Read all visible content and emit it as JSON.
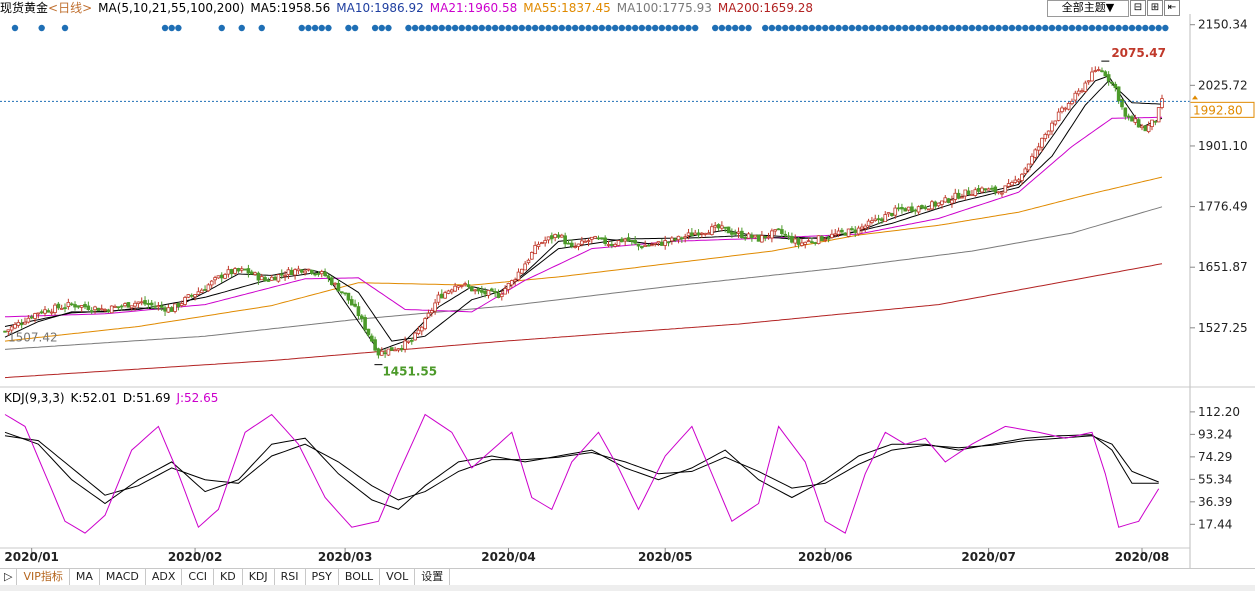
{
  "legend": {
    "title": "现货黄金",
    "period": "<日线>",
    "ma_set": "MA(5,10,21,55,100,200)",
    "ma5": "MA5:1958.56",
    "ma10": "MA10:1986.92",
    "ma21": "MA21:1960.58",
    "ma55": "MA55:1837.45",
    "ma100": "MA100:1775.93",
    "ma200": "MA200:1659.28"
  },
  "toolbar": {
    "theme_label": "全部主题▼",
    "minus": "⊟",
    "plus": "⊞",
    "back": "⇤"
  },
  "kdj_legend": {
    "name": "KDJ(9,3,3)",
    "k": "K:52.01",
    "d": "D:51.69",
    "j": "J:52.65"
  },
  "tabs": [
    "VIP指标",
    "MA",
    "MACD",
    "ADX",
    "CCI",
    "KD",
    "KDJ",
    "RSI",
    "PSY",
    "BOLL",
    "VOL",
    "设置"
  ],
  "tabs_first_symbol": "▷",
  "colors": {
    "up": "#c0392b",
    "down": "#4c9a2a",
    "ma5": "#000000",
    "ma10": "#000000",
    "ma21": "#cc00cc",
    "ma55": "#e08a00",
    "ma100": "#7a7a7a",
    "ma200": "#b22222",
    "dots": "#1f6fb5",
    "price_line": "#1f6fb5",
    "price_label": "#e08a00"
  },
  "chart_data": [
    {
      "type": "candlestick",
      "title": "现货黄金 <日线>",
      "y_ticks": [
        "2150.34",
        "2025.72",
        "1901.10",
        "1776.49",
        "1651.87",
        "1527.25"
      ],
      "ylim": [
        1420,
        2160
      ],
      "x_labels": [
        "2020/01",
        "2020/02",
        "2020/03",
        "2020/04",
        "2020/05",
        "2020/06",
        "2020/07",
        "2020/08"
      ],
      "current_price": "1992.80",
      "annotations": {
        "high": "2075.47",
        "low": "1451.55",
        "start": "1507.42"
      },
      "keypoints": {
        "close": [
          [
            0,
            1520
          ],
          [
            10,
            1560
          ],
          [
            20,
            1575
          ],
          [
            30,
            1565
          ],
          [
            40,
            1580
          ],
          [
            45,
            1572
          ],
          [
            50,
            1565
          ],
          [
            55,
            1590
          ],
          [
            60,
            1610
          ],
          [
            66,
            1640
          ],
          [
            72,
            1645
          ],
          [
            78,
            1625
          ],
          [
            84,
            1640
          ],
          [
            90,
            1650
          ],
          [
            96,
            1635
          ],
          [
            102,
            1595
          ],
          [
            106,
            1555
          ],
          [
            112,
            1475
          ],
          [
            118,
            1488
          ],
          [
            122,
            1500
          ],
          [
            126,
            1540
          ],
          [
            130,
            1590
          ],
          [
            136,
            1620
          ],
          [
            142,
            1600
          ],
          [
            148,
            1595
          ],
          [
            152,
            1622
          ],
          [
            156,
            1660
          ],
          [
            160,
            1700
          ],
          [
            166,
            1720
          ],
          [
            170,
            1690
          ],
          [
            176,
            1710
          ],
          [
            182,
            1700
          ],
          [
            186,
            1710
          ],
          [
            190,
            1695
          ],
          [
            196,
            1700
          ],
          [
            202,
            1710
          ],
          [
            208,
            1725
          ],
          [
            214,
            1732
          ],
          [
            220,
            1720
          ],
          [
            226,
            1710
          ],
          [
            232,
            1725
          ],
          [
            238,
            1700
          ],
          [
            244,
            1710
          ],
          [
            250,
            1720
          ],
          [
            256,
            1730
          ],
          [
            262,
            1750
          ],
          [
            268,
            1770
          ],
          [
            274,
            1775
          ],
          [
            280,
            1782
          ],
          [
            286,
            1800
          ],
          [
            292,
            1812
          ],
          [
            298,
            1808
          ],
          [
            302,
            1820
          ],
          [
            306,
            1855
          ],
          [
            310,
            1900
          ],
          [
            314,
            1950
          ],
          [
            318,
            1980
          ],
          [
            322,
            2010
          ],
          [
            325,
            2040
          ],
          [
            328,
            2060
          ],
          [
            330,
            2050
          ],
          [
            333,
            2020
          ],
          [
            336,
            1960
          ],
          [
            339,
            1950
          ],
          [
            342,
            1935
          ],
          [
            345,
            1955
          ],
          [
            347,
            1992
          ]
        ],
        "ma5": [
          [
            0,
            1508
          ],
          [
            10,
            1540
          ],
          [
            20,
            1560
          ],
          [
            30,
            1560
          ],
          [
            40,
            1568
          ],
          [
            50,
            1565
          ],
          [
            60,
            1600
          ],
          [
            70,
            1638
          ],
          [
            80,
            1635
          ],
          [
            90,
            1648
          ],
          [
            96,
            1640
          ],
          [
            104,
            1560
          ],
          [
            112,
            1480
          ],
          [
            120,
            1500
          ],
          [
            130,
            1570
          ],
          [
            140,
            1612
          ],
          [
            148,
            1600
          ],
          [
            156,
            1640
          ],
          [
            166,
            1705
          ],
          [
            176,
            1712
          ],
          [
            186,
            1706
          ],
          [
            196,
            1698
          ],
          [
            206,
            1716
          ],
          [
            216,
            1728
          ],
          [
            226,
            1715
          ],
          [
            236,
            1710
          ],
          [
            246,
            1713
          ],
          [
            256,
            1726
          ],
          [
            266,
            1752
          ],
          [
            276,
            1775
          ],
          [
            286,
            1796
          ],
          [
            296,
            1808
          ],
          [
            304,
            1822
          ],
          [
            312,
            1900
          ],
          [
            320,
            1978
          ],
          [
            327,
            2035
          ],
          [
            331,
            2045
          ],
          [
            336,
            1990
          ],
          [
            341,
            1940
          ],
          [
            347,
            1958
          ]
        ],
        "ma10": [
          [
            0,
            1530
          ],
          [
            20,
            1558
          ],
          [
            40,
            1565
          ],
          [
            60,
            1590
          ],
          [
            80,
            1628
          ],
          [
            96,
            1643
          ],
          [
            106,
            1600
          ],
          [
            116,
            1500
          ],
          [
            126,
            1510
          ],
          [
            140,
            1585
          ],
          [
            150,
            1605
          ],
          [
            166,
            1690
          ],
          [
            186,
            1710
          ],
          [
            206,
            1712
          ],
          [
            226,
            1718
          ],
          [
            246,
            1710
          ],
          [
            266,
            1742
          ],
          [
            286,
            1786
          ],
          [
            304,
            1816
          ],
          [
            314,
            1880
          ],
          [
            324,
            1985
          ],
          [
            331,
            2035
          ],
          [
            338,
            1990
          ],
          [
            347,
            1987
          ]
        ],
        "ma21": [
          [
            0,
            1550
          ],
          [
            30,
            1556
          ],
          [
            60,
            1575
          ],
          [
            90,
            1628
          ],
          [
            106,
            1630
          ],
          [
            120,
            1565
          ],
          [
            140,
            1560
          ],
          [
            156,
            1625
          ],
          [
            176,
            1690
          ],
          [
            200,
            1705
          ],
          [
            230,
            1712
          ],
          [
            256,
            1720
          ],
          [
            280,
            1752
          ],
          [
            304,
            1806
          ],
          [
            320,
            1900
          ],
          [
            332,
            1958
          ],
          [
            347,
            1960
          ]
        ],
        "ma55": [
          [
            0,
            1500
          ],
          [
            40,
            1530
          ],
          [
            80,
            1573
          ],
          [
            106,
            1620
          ],
          [
            140,
            1615
          ],
          [
            166,
            1632
          ],
          [
            200,
            1660
          ],
          [
            230,
            1685
          ],
          [
            256,
            1718
          ],
          [
            280,
            1738
          ],
          [
            304,
            1765
          ],
          [
            324,
            1800
          ],
          [
            347,
            1837
          ]
        ],
        "ma100": [
          [
            0,
            1483
          ],
          [
            60,
            1510
          ],
          [
            106,
            1545
          ],
          [
            150,
            1572
          ],
          [
            200,
            1613
          ],
          [
            250,
            1650
          ],
          [
            290,
            1685
          ],
          [
            320,
            1722
          ],
          [
            347,
            1776
          ]
        ],
        "ma200": [
          [
            0,
            1425
          ],
          [
            80,
            1460
          ],
          [
            150,
            1500
          ],
          [
            220,
            1535
          ],
          [
            280,
            1575
          ],
          [
            347,
            1659
          ]
        ]
      }
    },
    {
      "type": "line",
      "title": "KDJ(9,3,3)",
      "y_ticks": [
        "112.20",
        "93.24",
        "74.29",
        "55.34",
        "36.39",
        "17.44"
      ],
      "ylim": [
        0,
        118
      ],
      "series_keypoints": {
        "K": [
          [
            0,
            95
          ],
          [
            10,
            85
          ],
          [
            20,
            55
          ],
          [
            30,
            35
          ],
          [
            40,
            55
          ],
          [
            50,
            70
          ],
          [
            60,
            45
          ],
          [
            70,
            55
          ],
          [
            80,
            85
          ],
          [
            90,
            90
          ],
          [
            100,
            60
          ],
          [
            110,
            38
          ],
          [
            118,
            30
          ],
          [
            126,
            50
          ],
          [
            136,
            70
          ],
          [
            146,
            75
          ],
          [
            156,
            70
          ],
          [
            166,
            75
          ],
          [
            176,
            80
          ],
          [
            186,
            65
          ],
          [
            196,
            55
          ],
          [
            206,
            65
          ],
          [
            216,
            80
          ],
          [
            226,
            55
          ],
          [
            236,
            40
          ],
          [
            246,
            55
          ],
          [
            256,
            75
          ],
          [
            266,
            85
          ],
          [
            276,
            85
          ],
          [
            286,
            80
          ],
          [
            296,
            85
          ],
          [
            306,
            90
          ],
          [
            316,
            92
          ],
          [
            326,
            93
          ],
          [
            332,
            80
          ],
          [
            338,
            52
          ],
          [
            347,
            52
          ]
        ],
        "D": [
          [
            0,
            92
          ],
          [
            10,
            88
          ],
          [
            20,
            65
          ],
          [
            30,
            42
          ],
          [
            40,
            50
          ],
          [
            50,
            65
          ],
          [
            60,
            55
          ],
          [
            70,
            52
          ],
          [
            80,
            75
          ],
          [
            90,
            85
          ],
          [
            100,
            70
          ],
          [
            110,
            50
          ],
          [
            118,
            38
          ],
          [
            126,
            45
          ],
          [
            136,
            62
          ],
          [
            146,
            72
          ],
          [
            156,
            72
          ],
          [
            166,
            74
          ],
          [
            176,
            78
          ],
          [
            186,
            70
          ],
          [
            196,
            60
          ],
          [
            206,
            62
          ],
          [
            216,
            74
          ],
          [
            226,
            62
          ],
          [
            236,
            48
          ],
          [
            246,
            52
          ],
          [
            256,
            68
          ],
          [
            266,
            80
          ],
          [
            276,
            84
          ],
          [
            286,
            82
          ],
          [
            296,
            84
          ],
          [
            306,
            88
          ],
          [
            316,
            90
          ],
          [
            326,
            92
          ],
          [
            332,
            85
          ],
          [
            338,
            62
          ],
          [
            347,
            52
          ]
        ],
        "J": [
          [
            0,
            110
          ],
          [
            6,
            100
          ],
          [
            12,
            60
          ],
          [
            18,
            20
          ],
          [
            24,
            10
          ],
          [
            30,
            25
          ],
          [
            38,
            80
          ],
          [
            46,
            100
          ],
          [
            52,
            60
          ],
          [
            58,
            15
          ],
          [
            64,
            30
          ],
          [
            72,
            95
          ],
          [
            80,
            110
          ],
          [
            88,
            85
          ],
          [
            96,
            40
          ],
          [
            104,
            15
          ],
          [
            112,
            20
          ],
          [
            118,
            60
          ],
          [
            126,
            110
          ],
          [
            134,
            95
          ],
          [
            140,
            65
          ],
          [
            146,
            80
          ],
          [
            152,
            95
          ],
          [
            158,
            40
          ],
          [
            164,
            30
          ],
          [
            170,
            70
          ],
          [
            178,
            95
          ],
          [
            184,
            65
          ],
          [
            190,
            30
          ],
          [
            198,
            75
          ],
          [
            206,
            100
          ],
          [
            212,
            60
          ],
          [
            218,
            20
          ],
          [
            226,
            35
          ],
          [
            232,
            100
          ],
          [
            240,
            70
          ],
          [
            246,
            20
          ],
          [
            252,
            10
          ],
          [
            258,
            60
          ],
          [
            264,
            95
          ],
          [
            270,
            85
          ],
          [
            276,
            90
          ],
          [
            282,
            70
          ],
          [
            290,
            85
          ],
          [
            300,
            100
          ],
          [
            310,
            95
          ],
          [
            318,
            90
          ],
          [
            326,
            95
          ],
          [
            330,
            60
          ],
          [
            334,
            15
          ],
          [
            340,
            20
          ],
          [
            347,
            52
          ]
        ]
      }
    }
  ]
}
